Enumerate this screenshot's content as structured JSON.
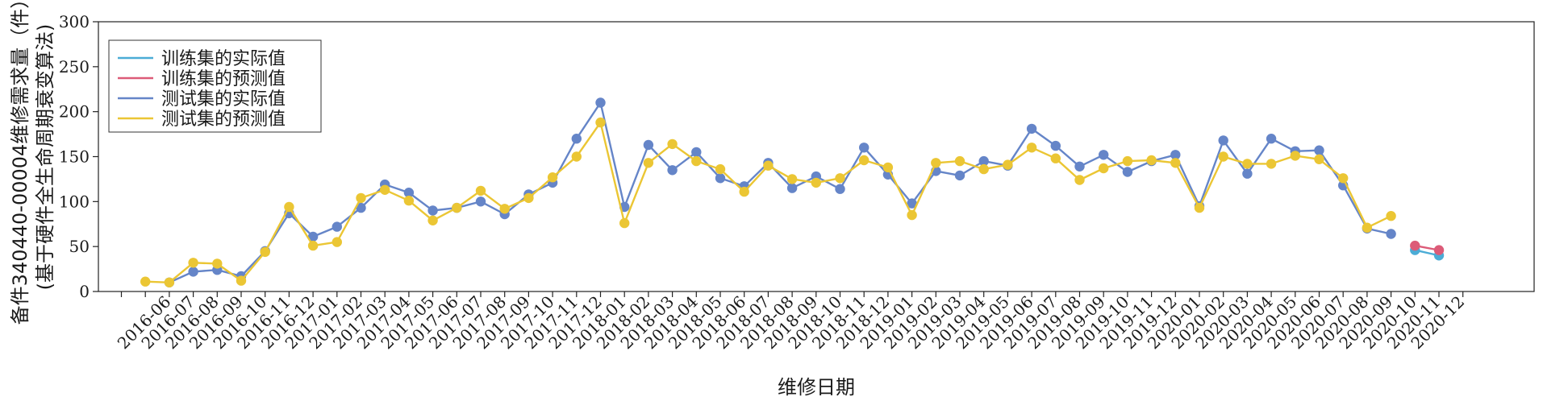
{
  "chart_data": {
    "type": "line",
    "xlabel": "维修日期",
    "ylabel_line1": "备件340440-00004维修需求量（件）",
    "ylabel_line2": "(基于硬件全生命周期衰变算法)",
    "ylim": [
      0,
      300
    ],
    "yticks": [
      0,
      50,
      100,
      150,
      200,
      250,
      300
    ],
    "categories": [
      "2016-06",
      "2016-07",
      "2016-08",
      "2016-09",
      "2016-10",
      "2016-11",
      "2016-12",
      "2017-01",
      "2017-02",
      "2017-03",
      "2017-04",
      "2017-05",
      "2017-06",
      "2017-07",
      "2017-08",
      "2017-09",
      "2017-10",
      "2017-11",
      "2017-12",
      "2018-01",
      "2018-02",
      "2018-03",
      "2018-04",
      "2018-05",
      "2018-06",
      "2018-07",
      "2018-08",
      "2018-09",
      "2018-10",
      "2018-11",
      "2018-12",
      "2019-01",
      "2019-02",
      "2019-03",
      "2019-04",
      "2019-05",
      "2019-06",
      "2019-07",
      "2019-08",
      "2019-09",
      "2019-10",
      "2019-11",
      "2019-12",
      "2020-01",
      "2020-02",
      "2020-03",
      "2020-04",
      "2020-05",
      "2020-06",
      "2020-07",
      "2020-08",
      "2020-09",
      "2020-10",
      "2020-11",
      "2020-12"
    ],
    "legend_position": "top-left",
    "grid": false,
    "series": [
      {
        "name": "训练集的实际值",
        "color": "#4bacd6",
        "points": [
          [
            54,
            46
          ],
          [
            55,
            40
          ]
        ]
      },
      {
        "name": "训练集的预测值",
        "color": "#dc5b78",
        "points": [
          [
            54,
            51
          ],
          [
            55,
            46
          ]
        ]
      },
      {
        "name": "测试集的实际值",
        "color": "#6585c8",
        "points": [
          [
            2,
            10
          ],
          [
            3,
            22
          ],
          [
            4,
            24
          ],
          [
            5,
            17
          ],
          [
            6,
            45
          ],
          [
            7,
            87
          ],
          [
            8,
            61
          ],
          [
            9,
            72
          ],
          [
            10,
            93
          ],
          [
            11,
            119
          ],
          [
            12,
            110
          ],
          [
            13,
            90
          ],
          [
            14,
            93
          ],
          [
            15,
            100
          ],
          [
            16,
            86
          ],
          [
            17,
            108
          ],
          [
            18,
            121
          ],
          [
            19,
            170
          ],
          [
            20,
            210
          ],
          [
            21,
            94
          ],
          [
            22,
            163
          ],
          [
            23,
            135
          ],
          [
            24,
            155
          ],
          [
            25,
            126
          ],
          [
            26,
            117
          ],
          [
            27,
            143
          ],
          [
            28,
            115
          ],
          [
            29,
            128
          ],
          [
            30,
            114
          ],
          [
            31,
            160
          ],
          [
            32,
            130
          ],
          [
            33,
            98
          ],
          [
            34,
            134
          ],
          [
            35,
            129
          ],
          [
            36,
            145
          ],
          [
            37,
            140
          ],
          [
            38,
            181
          ],
          [
            39,
            162
          ],
          [
            40,
            139
          ],
          [
            41,
            152
          ],
          [
            42,
            133
          ],
          [
            43,
            145
          ],
          [
            44,
            152
          ],
          [
            45,
            95
          ],
          [
            46,
            168
          ],
          [
            47,
            131
          ],
          [
            48,
            170
          ],
          [
            49,
            156
          ],
          [
            50,
            157
          ],
          [
            51,
            118
          ],
          [
            52,
            70
          ],
          [
            53,
            64
          ]
        ]
      },
      {
        "name": "测试集的预测值",
        "color": "#ebc634",
        "points": [
          [
            1,
            11
          ],
          [
            2,
            10
          ],
          [
            3,
            32
          ],
          [
            4,
            31
          ],
          [
            5,
            12
          ],
          [
            6,
            44
          ],
          [
            7,
            94
          ],
          [
            8,
            51
          ],
          [
            9,
            55
          ],
          [
            10,
            104
          ],
          [
            11,
            113
          ],
          [
            12,
            101
          ],
          [
            13,
            79
          ],
          [
            14,
            93
          ],
          [
            15,
            112
          ],
          [
            16,
            92
          ],
          [
            17,
            104
          ],
          [
            18,
            127
          ],
          [
            19,
            150
          ],
          [
            20,
            188
          ],
          [
            21,
            76
          ],
          [
            22,
            143
          ],
          [
            23,
            164
          ],
          [
            24,
            145
          ],
          [
            25,
            136
          ],
          [
            26,
            111
          ],
          [
            27,
            140
          ],
          [
            28,
            125
          ],
          [
            29,
            121
          ],
          [
            30,
            126
          ],
          [
            31,
            146
          ],
          [
            32,
            138
          ],
          [
            33,
            85
          ],
          [
            34,
            143
          ],
          [
            35,
            145
          ],
          [
            36,
            136
          ],
          [
            37,
            141
          ],
          [
            38,
            160
          ],
          [
            39,
            148
          ],
          [
            40,
            124
          ],
          [
            41,
            137
          ],
          [
            42,
            145
          ],
          [
            43,
            146
          ],
          [
            44,
            143
          ],
          [
            45,
            93
          ],
          [
            46,
            150
          ],
          [
            47,
            142
          ],
          [
            48,
            142
          ],
          [
            49,
            151
          ],
          [
            50,
            147
          ],
          [
            51,
            126
          ],
          [
            52,
            71
          ],
          [
            53,
            84
          ]
        ]
      }
    ]
  }
}
